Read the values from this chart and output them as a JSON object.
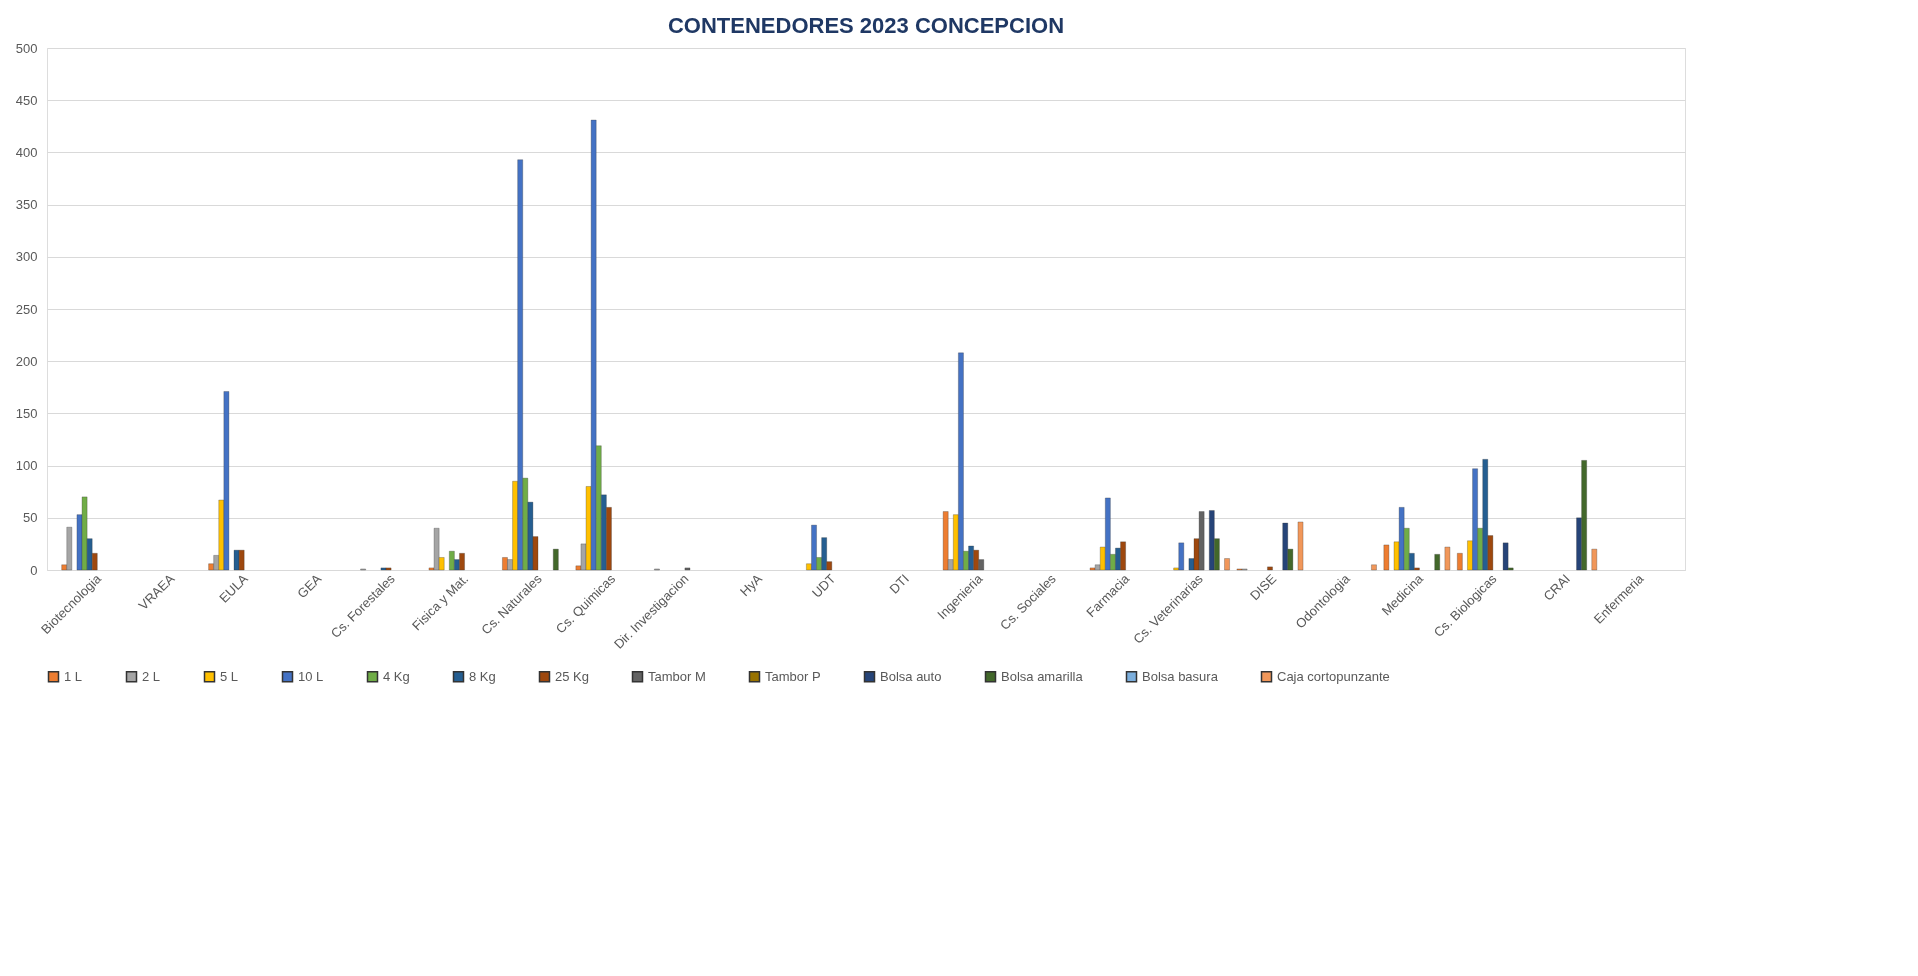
{
  "chart_data": {
    "type": "bar",
    "title": "CONTENEDORES  2023 CONCEPCION",
    "categories": [
      "Biotecnologia",
      "VRAEA",
      "EULA",
      "GEA",
      "Cs. Forestales",
      "Fisica y Mat.",
      "Cs. Naturales",
      "Cs. Quimicas",
      "Dir. Investigacion",
      "HyA",
      "UDT",
      "DTI",
      "Ingenieria",
      "Cs. Sociales",
      "Farmacia",
      "Cs. Veterinarias",
      "DISE",
      "Odontologia",
      "Medicina",
      "Cs. Biologicas",
      "CRAI",
      "Enfermeria"
    ],
    "series": [
      {
        "name": "1 L",
        "color": "#ed7d31",
        "values": [
          5,
          null,
          6,
          null,
          null,
          2,
          12,
          4,
          null,
          null,
          null,
          null,
          56,
          null,
          2,
          null,
          1,
          null,
          24,
          16,
          null,
          null
        ]
      },
      {
        "name": "2 L",
        "color": "#a5a5a5",
        "values": [
          41,
          null,
          14,
          null,
          1,
          40,
          10,
          25,
          1,
          null,
          null,
          null,
          10,
          null,
          5,
          null,
          1,
          null,
          null,
          null,
          null,
          null
        ]
      },
      {
        "name": "5 L",
        "color": "#ffc000",
        "values": [
          null,
          null,
          67,
          null,
          null,
          12,
          85,
          80,
          null,
          null,
          6,
          null,
          53,
          null,
          22,
          2,
          null,
          null,
          27,
          28,
          null,
          null
        ]
      },
      {
        "name": "10 L",
        "color": "#4472c4",
        "values": [
          53,
          null,
          171,
          null,
          null,
          null,
          393,
          431,
          null,
          null,
          43,
          null,
          208,
          null,
          69,
          26,
          null,
          null,
          60,
          97,
          null,
          null
        ]
      },
      {
        "name": "4 Kg",
        "color": "#70ad47",
        "values": [
          70,
          null,
          null,
          null,
          null,
          18,
          88,
          119,
          null,
          null,
          12,
          null,
          18,
          null,
          15,
          null,
          null,
          null,
          40,
          40,
          null,
          null
        ]
      },
      {
        "name": "8 Kg",
        "color": "#255e91",
        "values": [
          30,
          null,
          19,
          null,
          2,
          10,
          65,
          72,
          null,
          null,
          31,
          null,
          23,
          null,
          21,
          11,
          null,
          null,
          16,
          106,
          null,
          null
        ]
      },
      {
        "name": "25 Kg",
        "color": "#9e480e",
        "values": [
          16,
          null,
          19,
          null,
          2,
          16,
          32,
          60,
          null,
          null,
          8,
          null,
          19,
          null,
          27,
          30,
          3,
          null,
          2,
          33,
          null,
          null
        ]
      },
      {
        "name": "Tambor M",
        "color": "#636363",
        "values": [
          null,
          null,
          null,
          null,
          null,
          null,
          null,
          null,
          2,
          null,
          null,
          null,
          10,
          null,
          null,
          56,
          null,
          null,
          null,
          null,
          null,
          null
        ]
      },
      {
        "name": "Tambor P",
        "color": "#997300",
        "values": [
          null,
          null,
          null,
          null,
          null,
          null,
          null,
          null,
          null,
          null,
          null,
          null,
          null,
          null,
          null,
          null,
          null,
          null,
          null,
          null,
          null,
          null
        ]
      },
      {
        "name": "Bolsa auto",
        "color": "#264478",
        "values": [
          null,
          null,
          null,
          null,
          null,
          null,
          null,
          null,
          null,
          null,
          null,
          null,
          null,
          null,
          null,
          57,
          45,
          null,
          null,
          26,
          50,
          null
        ]
      },
      {
        "name": "Bolsa amarilla",
        "color": "#43682b",
        "values": [
          null,
          null,
          null,
          null,
          null,
          null,
          20,
          null,
          null,
          null,
          null,
          null,
          null,
          null,
          null,
          30,
          20,
          null,
          15,
          2,
          105,
          null
        ]
      },
      {
        "name": "Bolsa basura",
        "color": "#7cafdd",
        "values": [
          null,
          null,
          null,
          null,
          null,
          null,
          null,
          null,
          null,
          null,
          null,
          null,
          null,
          null,
          null,
          null,
          null,
          null,
          null,
          null,
          null,
          null
        ]
      },
      {
        "name": "Caja cortopunzante",
        "color": "#f1975a",
        "values": [
          null,
          null,
          null,
          null,
          null,
          null,
          null,
          null,
          null,
          null,
          null,
          null,
          null,
          null,
          null,
          11,
          46,
          5,
          22,
          null,
          20,
          null
        ]
      }
    ],
    "ylim": [
      0,
      500
    ],
    "yticks": [
      0,
      50,
      100,
      150,
      200,
      250,
      300,
      350,
      400,
      450,
      500
    ],
    "grid": "y",
    "legend": "bottom"
  }
}
